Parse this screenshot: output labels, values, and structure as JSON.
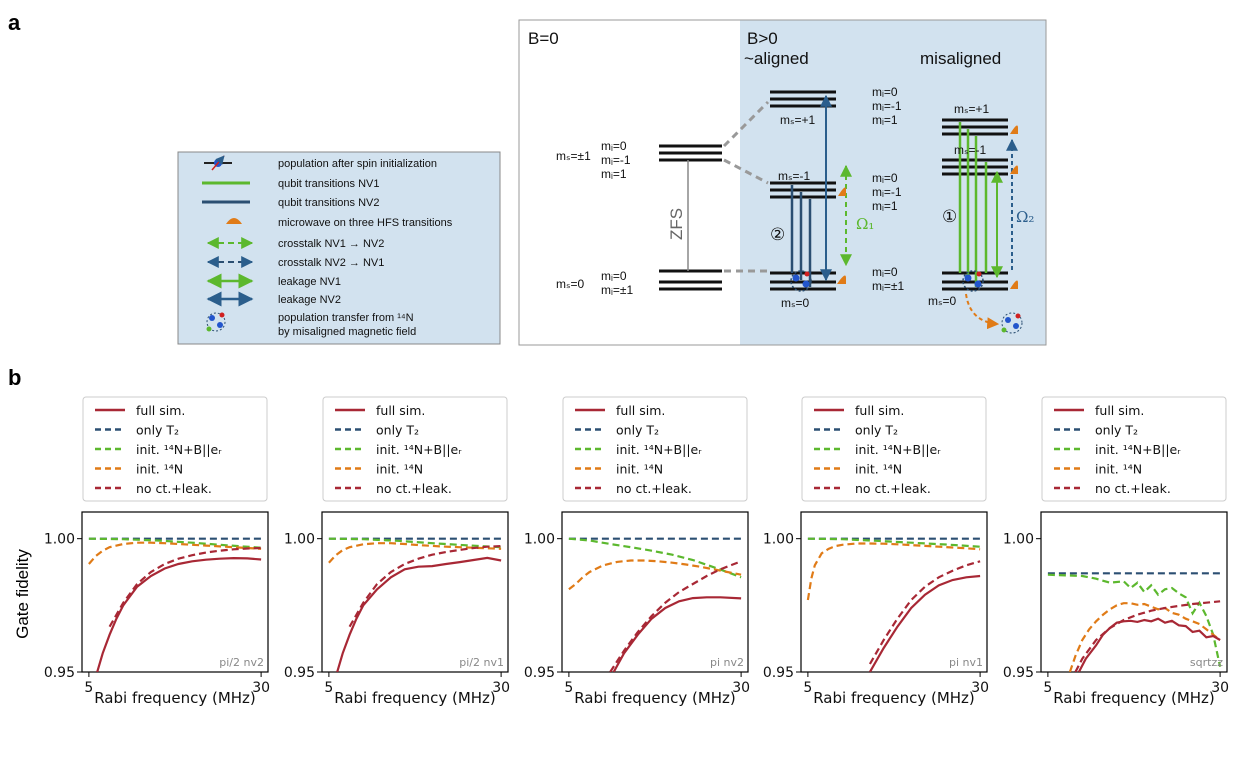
{
  "panel_a": {
    "letter": "a",
    "legend": [
      {
        "icon": "population-dot",
        "label": "population after spin initialization"
      },
      {
        "icon": "green-line",
        "label": "qubit transitions NV1"
      },
      {
        "icon": "blue-line",
        "label": "qubit transitions NV2"
      },
      {
        "icon": "orange-bump",
        "label": "microwave on three HFS transitions"
      },
      {
        "icon": "green-dashed-arrow",
        "label": "crosstalk NV1 → NV2"
      },
      {
        "icon": "blue-dashed-arrow",
        "label": "crosstalk NV2 → NV1"
      },
      {
        "icon": "green-arrow",
        "label": "leakage NV1"
      },
      {
        "icon": "blue-arrow",
        "label": "leakage NV2"
      },
      {
        "icon": "transfer-cluster",
        "label": "population transfer from ¹⁴N"
      },
      {
        "icon": "",
        "label": "by misaligned magnetic field"
      }
    ],
    "diagram": {
      "b0_title": "B=0",
      "b_pos_title": "B>0",
      "aligned_title": "~aligned",
      "misaligned_title": "misaligned",
      "zfs_label": "ZFS",
      "ms_pm1": "mₛ=±1",
      "ms_0": "mₛ=0",
      "ms_plus1": "mₛ=+1",
      "ms_minus1": "mₛ=-1",
      "ms_zero": "mₛ=0",
      "mi_0": "mᵢ=0",
      "mi_minus1": "mᵢ=-1",
      "mi_1": "mᵢ=1",
      "mi_pm1": "mᵢ=±1",
      "omega1": "Ω₁",
      "omega2": "Ω₂",
      "circle1": "①",
      "circle2": "②"
    }
  },
  "panel_b": {
    "letter": "b",
    "legend_items": [
      {
        "label": "full sim.",
        "style": "solid",
        "color": "#a82835"
      },
      {
        "label": "only T₂",
        "style": "dashed",
        "color": "#2b4f72"
      },
      {
        "label": "init. ¹⁴N+B||eᵣ",
        "style": "dashed",
        "color": "#5cb82e"
      },
      {
        "label": "init. ¹⁴N",
        "style": "dashed",
        "color": "#e07b17"
      },
      {
        "label": "no ct.+leak.",
        "style": "dashed",
        "color": "#a82835"
      }
    ],
    "ylabel": "Gate fidelity",
    "xlabel": "Rabi frequency (MHz)",
    "yticks": [
      "0.95",
      "1.00"
    ],
    "xticks": [
      "5",
      "30"
    ]
  },
  "chart_data": [
    {
      "type": "line",
      "title": "pi/2 nv2",
      "xlabel": "Rabi frequency (MHz)",
      "ylabel": "Gate fidelity",
      "xlim": [
        4,
        31
      ],
      "ylim": [
        0.95,
        1.01
      ],
      "series": [
        {
          "name": "full sim.",
          "color": "#a82835",
          "dash": false,
          "x": [
            6.2,
            7,
            8,
            9,
            10,
            12,
            14,
            16,
            18,
            20,
            22,
            24,
            26,
            28,
            30
          ],
          "y": [
            0.95,
            0.957,
            0.964,
            0.97,
            0.975,
            0.982,
            0.986,
            0.9888,
            0.9905,
            0.9915,
            0.9921,
            0.9925,
            0.9927,
            0.9926,
            0.9922
          ]
        },
        {
          "name": "only T2",
          "color": "#2b4f72",
          "dash": true,
          "x": [
            5,
            30
          ],
          "y": [
            1.0,
            1.0
          ]
        },
        {
          "name": "init. 14N+B||ez",
          "color": "#5cb82e",
          "dash": true,
          "x": [
            5,
            10,
            15,
            20,
            25,
            30
          ],
          "y": [
            1.0,
            0.9998,
            0.9993,
            0.9985,
            0.9975,
            0.9966
          ]
        },
        {
          "name": "init. 14N",
          "color": "#e07b17",
          "dash": true,
          "x": [
            5,
            6,
            7,
            8,
            10,
            12,
            14,
            16,
            18,
            20,
            22,
            24,
            26,
            28,
            30
          ],
          "y": [
            0.9905,
            0.9935,
            0.9955,
            0.9968,
            0.998,
            0.9985,
            0.9985,
            0.9983,
            0.998,
            0.9977,
            0.9974,
            0.9971,
            0.9968,
            0.9965,
            0.9962
          ]
        },
        {
          "name": "no ct.+leak.",
          "color": "#a82835",
          "dash": true,
          "x": [
            8,
            10,
            12,
            14,
            16,
            18,
            20,
            22,
            24,
            26,
            28,
            30
          ],
          "y": [
            0.967,
            0.976,
            0.983,
            0.9875,
            0.9905,
            0.9925,
            0.9938,
            0.9948,
            0.9955,
            0.996,
            0.9963,
            0.9965
          ]
        }
      ]
    },
    {
      "type": "line",
      "title": "pi/2 nv1",
      "xlabel": "Rabi frequency (MHz)",
      "ylabel": "Gate fidelity",
      "xlim": [
        4,
        31
      ],
      "ylim": [
        0.95,
        1.01
      ],
      "series": [
        {
          "name": "full sim.",
          "color": "#a82835",
          "dash": false,
          "x": [
            6.2,
            7,
            8,
            9,
            10,
            12,
            14,
            16,
            18,
            20,
            22,
            24,
            26,
            28,
            30
          ],
          "y": [
            0.95,
            0.957,
            0.964,
            0.97,
            0.975,
            0.981,
            0.9855,
            0.9885,
            0.9895,
            0.9897,
            0.9905,
            0.9912,
            0.992,
            0.9928,
            0.9918
          ]
        },
        {
          "name": "only T2",
          "color": "#2b4f72",
          "dash": true,
          "x": [
            5,
            30
          ],
          "y": [
            1.0,
            1.0
          ]
        },
        {
          "name": "init. 14N+B||ez",
          "color": "#5cb82e",
          "dash": true,
          "x": [
            5,
            10,
            15,
            20,
            25,
            30
          ],
          "y": [
            1.0,
            0.9998,
            0.9992,
            0.9983,
            0.9975,
            0.9968
          ]
        },
        {
          "name": "init. 14N",
          "color": "#e07b17",
          "dash": true,
          "x": [
            5,
            6,
            7,
            8,
            10,
            12,
            14,
            16,
            18,
            20,
            22,
            24,
            26,
            28,
            30
          ],
          "y": [
            0.991,
            0.9938,
            0.9957,
            0.9968,
            0.9979,
            0.9983,
            0.9983,
            0.998,
            0.9976,
            0.9973,
            0.997,
            0.9968,
            0.9966,
            0.9964,
            0.9962
          ]
        },
        {
          "name": "no ct.+leak.",
          "color": "#a82835",
          "dash": true,
          "x": [
            8,
            10,
            12,
            14,
            16,
            18,
            20,
            22,
            24,
            26,
            28,
            30
          ],
          "y": [
            0.967,
            0.976,
            0.983,
            0.9875,
            0.9905,
            0.9925,
            0.994,
            0.995,
            0.9958,
            0.9965,
            0.997,
            0.9972
          ]
        }
      ]
    },
    {
      "type": "line",
      "title": "pi nv2",
      "xlabel": "Rabi frequency (MHz)",
      "ylabel": "Gate fidelity",
      "xlim": [
        4,
        31
      ],
      "ylim": [
        0.95,
        1.01
      ],
      "series": [
        {
          "name": "full sim.",
          "color": "#a82835",
          "dash": false,
          "x": [
            11.5,
            13,
            15,
            17,
            19,
            21,
            23,
            25,
            27,
            30
          ],
          "y": [
            0.95,
            0.957,
            0.964,
            0.97,
            0.974,
            0.9765,
            0.9777,
            0.978,
            0.978,
            0.9776
          ]
        },
        {
          "name": "only T2",
          "color": "#2b4f72",
          "dash": true,
          "x": [
            5,
            30
          ],
          "y": [
            1.0,
            1.0
          ]
        },
        {
          "name": "init. 14N+B||ez",
          "color": "#5cb82e",
          "dash": true,
          "x": [
            5,
            8,
            11,
            14,
            17,
            20,
            23,
            26,
            28,
            30
          ],
          "y": [
            1.0,
            0.9993,
            0.998,
            0.9968,
            0.9955,
            0.994,
            0.992,
            0.9893,
            0.9875,
            0.9855
          ]
        },
        {
          "name": "init. 14N",
          "color": "#e07b17",
          "dash": true,
          "x": [
            5,
            6,
            7,
            8,
            10,
            12,
            14,
            16,
            18,
            20,
            22,
            24,
            26,
            28,
            30
          ],
          "y": [
            0.981,
            0.983,
            0.9855,
            0.9875,
            0.99,
            0.9913,
            0.9918,
            0.9918,
            0.9915,
            0.991,
            0.9903,
            0.9895,
            0.9885,
            0.9875,
            0.9865
          ]
        },
        {
          "name": "no ct.+leak.",
          "color": "#a82835",
          "dash": true,
          "x": [
            11,
            13,
            15,
            17,
            19,
            21,
            23,
            25,
            27,
            30
          ],
          "y": [
            0.95,
            0.958,
            0.965,
            0.971,
            0.976,
            0.98,
            0.983,
            0.986,
            0.9885,
            0.9915
          ]
        }
      ]
    },
    {
      "type": "line",
      "title": "pi nv1",
      "xlabel": "Rabi frequency (MHz)",
      "ylabel": "Gate fidelity",
      "xlim": [
        4,
        31
      ],
      "ylim": [
        0.95,
        1.01
      ],
      "series": [
        {
          "name": "full sim.",
          "color": "#a82835",
          "dash": false,
          "x": [
            14,
            16,
            18,
            20,
            22,
            24,
            26,
            28,
            30
          ],
          "y": [
            0.95,
            0.959,
            0.967,
            0.974,
            0.979,
            0.9825,
            0.9845,
            0.9855,
            0.986
          ]
        },
        {
          "name": "only T2",
          "color": "#2b4f72",
          "dash": true,
          "x": [
            5,
            30
          ],
          "y": [
            1.0,
            1.0
          ]
        },
        {
          "name": "init. 14N+B||ez",
          "color": "#5cb82e",
          "dash": true,
          "x": [
            5,
            10,
            15,
            20,
            25,
            30
          ],
          "y": [
            1.0,
            0.9998,
            0.9992,
            0.9985,
            0.9978,
            0.997
          ]
        },
        {
          "name": "init. 14N",
          "color": "#e07b17",
          "dash": true,
          "x": [
            5,
            5.5,
            6,
            7,
            8,
            9,
            10,
            12,
            14,
            16,
            18,
            20,
            22,
            24,
            26,
            28,
            30
          ],
          "y": [
            0.977,
            0.985,
            0.99,
            0.9945,
            0.9962,
            0.9972,
            0.9977,
            0.9982,
            0.9982,
            0.9981,
            0.9979,
            0.9976,
            0.9973,
            0.997,
            0.9967,
            0.9964,
            0.996
          ]
        },
        {
          "name": "no ct.+leak.",
          "color": "#a82835",
          "dash": true,
          "x": [
            14,
            16,
            18,
            20,
            22,
            24,
            26,
            28,
            30
          ],
          "y": [
            0.953,
            0.962,
            0.97,
            0.977,
            0.982,
            0.9855,
            0.988,
            0.99,
            0.9915
          ]
        }
      ]
    },
    {
      "type": "line",
      "title": "sqrtzz",
      "xlabel": "Rabi frequency (MHz)",
      "ylabel": "Gate fidelity",
      "xlim": [
        4,
        31
      ],
      "ylim": [
        0.95,
        1.01
      ],
      "series": [
        {
          "name": "full sim.",
          "color": "#a82835",
          "dash": false,
          "x": [
            9.5,
            10.5,
            12,
            13,
            14,
            15,
            16,
            17,
            18,
            19,
            20,
            21,
            22,
            23,
            24,
            25,
            26,
            27,
            28,
            29,
            30
          ],
          "y": [
            0.95,
            0.955,
            0.96,
            0.964,
            0.9665,
            0.9685,
            0.969,
            0.9692,
            0.9688,
            0.9695,
            0.969,
            0.97,
            0.9685,
            0.9692,
            0.9675,
            0.9672,
            0.965,
            0.9655,
            0.963,
            0.9635,
            0.962
          ]
        },
        {
          "name": "only T2",
          "color": "#2b4f72",
          "dash": true,
          "x": [
            5,
            30
          ],
          "y": [
            0.987,
            0.987
          ]
        },
        {
          "name": "init. 14N+B||ez",
          "color": "#5cb82e",
          "dash": true,
          "x": [
            5,
            10,
            12,
            14,
            16,
            17,
            18,
            19,
            20,
            21,
            22,
            23,
            24,
            25,
            26,
            27,
            28,
            29,
            30
          ],
          "y": [
            0.9865,
            0.986,
            0.985,
            0.9835,
            0.984,
            0.9815,
            0.9835,
            0.98,
            0.9825,
            0.979,
            0.981,
            0.9815,
            0.9795,
            0.978,
            0.972,
            0.976,
            0.971,
            0.964,
            0.952
          ]
        },
        {
          "name": "init. 14N",
          "color": "#e07b17",
          "dash": true,
          "x": [
            8.2,
            9,
            10,
            11,
            12,
            13,
            14,
            15,
            16,
            17,
            18,
            19,
            20,
            21,
            22,
            23,
            24,
            25,
            26,
            27,
            28,
            29,
            30
          ],
          "y": [
            0.95,
            0.956,
            0.962,
            0.966,
            0.969,
            0.9715,
            0.9735,
            0.975,
            0.9758,
            0.9758,
            0.9752,
            0.9755,
            0.9745,
            0.9735,
            0.974,
            0.9722,
            0.9715,
            0.97,
            0.969,
            0.968,
            0.966,
            0.964,
            0.962
          ]
        },
        {
          "name": "no ct.+leak.",
          "color": "#a82835",
          "dash": true,
          "x": [
            9,
            10,
            12,
            14,
            16,
            18,
            20,
            22,
            24,
            26,
            28,
            30
          ],
          "y": [
            0.95,
            0.955,
            0.962,
            0.9665,
            0.9695,
            0.9715,
            0.973,
            0.974,
            0.9748,
            0.9755,
            0.976,
            0.9765
          ]
        }
      ]
    }
  ]
}
